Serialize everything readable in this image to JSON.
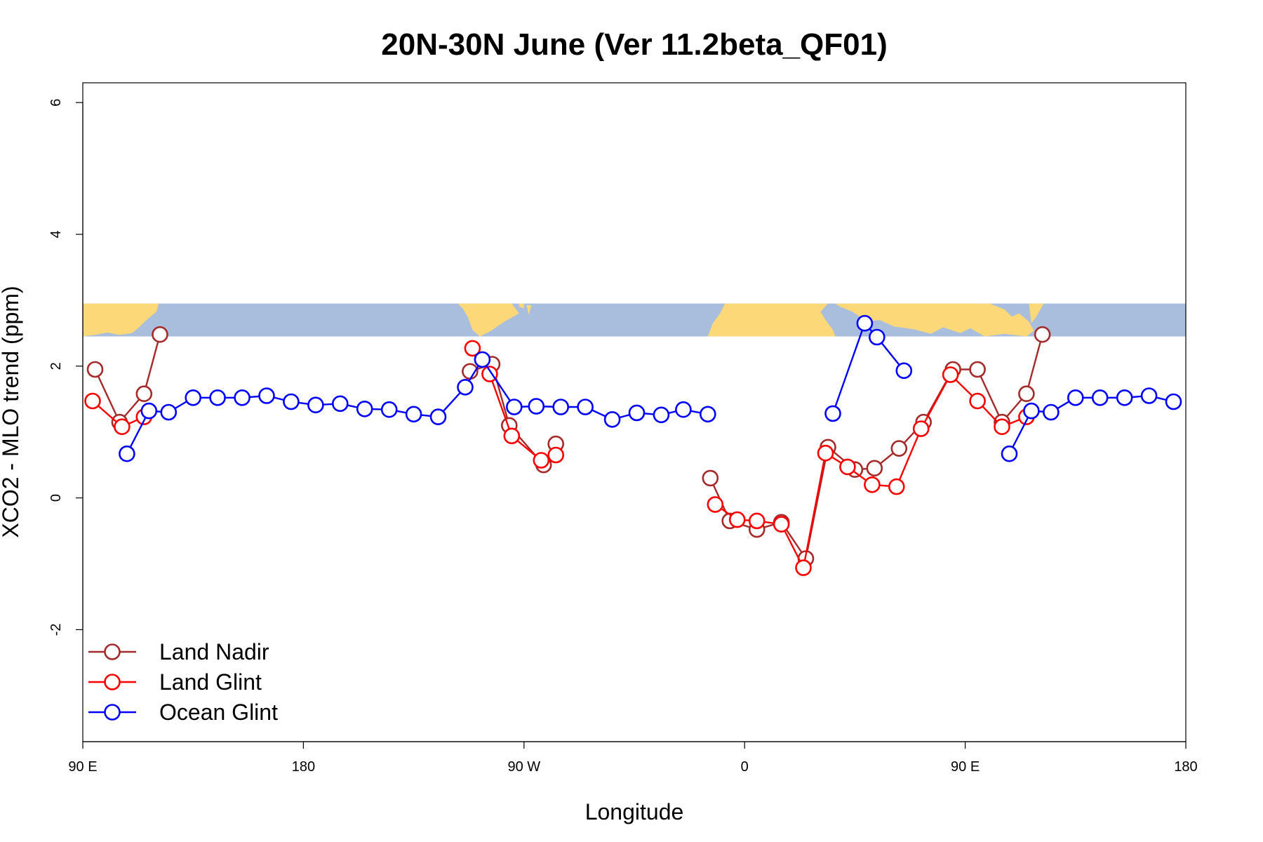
{
  "chart_data": {
    "type": "line",
    "title": "20N-30N June (Ver 11.2beta_QF01)",
    "xlabel": "Longitude",
    "ylabel": "XCO2 - MLO trend (ppm)",
    "xlim": [
      90,
      540
    ],
    "ylim": [
      -3.7,
      6.3
    ],
    "x_ticks": [
      {
        "value": 90,
        "label": "90 E"
      },
      {
        "value": 180,
        "label": "180"
      },
      {
        "value": 270,
        "label": "90 W"
      },
      {
        "value": 360,
        "label": "0"
      },
      {
        "value": 450,
        "label": "90 E"
      },
      {
        "value": 540,
        "label": "180"
      }
    ],
    "y_ticks": [
      {
        "value": -2,
        "label": "-2"
      },
      {
        "value": 0,
        "label": "0"
      },
      {
        "value": 2,
        "label": "2"
      },
      {
        "value": 4,
        "label": "4"
      },
      {
        "value": 6,
        "label": "6"
      }
    ],
    "map_band": {
      "ymin": 2.45,
      "ymax": 2.95,
      "ocean_color": "#a8bedc",
      "land_color": "#fdd878"
    },
    "legend_position": "bottom-left",
    "series": [
      {
        "name": "Land Nadir",
        "color": "#a52a2a",
        "segments": [
          [
            [
              95,
              1.95
            ],
            [
              105,
              1.15
            ],
            [
              115,
              1.58
            ],
            [
              121.5,
              2.48
            ]
          ],
          [
            [
              248,
              1.92
            ],
            [
              257,
              2.03
            ],
            [
              264,
              1.1
            ],
            [
              278,
              0.5
            ],
            [
              283,
              0.82
            ]
          ],
          [
            [
              346,
              0.3
            ],
            [
              354,
              -0.35
            ],
            [
              365,
              -0.48
            ],
            [
              375,
              -0.37
            ],
            [
              385,
              -0.92
            ],
            [
              394,
              0.77
            ],
            [
              405,
              0.43
            ],
            [
              413,
              0.45
            ],
            [
              423,
              0.75
            ],
            [
              433,
              1.15
            ],
            [
              445,
              1.95
            ],
            [
              455,
              1.95
            ],
            [
              465,
              1.15
            ],
            [
              475,
              1.58
            ],
            [
              481.5,
              2.48
            ]
          ]
        ]
      },
      {
        "name": "Land Glint",
        "color": "#ff0000",
        "segments": [
          [
            [
              94,
              1.47
            ],
            [
              106,
              1.08
            ],
            [
              115,
              1.23
            ]
          ],
          [
            [
              249,
              2.27
            ],
            [
              256,
              1.88
            ],
            [
              265,
              0.94
            ],
            [
              277,
              0.57
            ],
            [
              283,
              0.65
            ]
          ],
          [
            [
              348,
              -0.1
            ],
            [
              357,
              -0.33
            ],
            [
              365,
              -0.35
            ],
            [
              375,
              -0.4
            ],
            [
              384,
              -1.06
            ],
            [
              393,
              0.68
            ],
            [
              402,
              0.47
            ],
            [
              412,
              0.2
            ],
            [
              422,
              0.17
            ],
            [
              432,
              1.05
            ],
            [
              444,
              1.87
            ],
            [
              455,
              1.47
            ],
            [
              465,
              1.08
            ],
            [
              475,
              1.23
            ]
          ]
        ]
      },
      {
        "name": "Ocean Glint",
        "color": "#0000ff",
        "segments": [
          [
            [
              108,
              0.67
            ],
            [
              117,
              1.32
            ],
            [
              125,
              1.3
            ],
            [
              135,
              1.52
            ],
            [
              145,
              1.52
            ],
            [
              155,
              1.52
            ],
            [
              165,
              1.55
            ],
            [
              175,
              1.46
            ],
            [
              185,
              1.41
            ],
            [
              195,
              1.43
            ],
            [
              205,
              1.35
            ],
            [
              215,
              1.34
            ],
            [
              225,
              1.27
            ],
            [
              235,
              1.23
            ],
            [
              246,
              1.68
            ],
            [
              253,
              2.1
            ],
            [
              266,
              1.38
            ],
            [
              275,
              1.39
            ],
            [
              285,
              1.38
            ],
            [
              295,
              1.38
            ],
            [
              306,
              1.19
            ],
            [
              316,
              1.29
            ],
            [
              326,
              1.26
            ],
            [
              335,
              1.34
            ],
            [
              345,
              1.27
            ]
          ],
          [
            [
              396,
              1.28
            ],
            [
              409,
              2.65
            ],
            [
              414,
              2.44
            ],
            [
              425,
              1.93
            ]
          ],
          [
            [
              468,
              0.67
            ],
            [
              477,
              1.32
            ],
            [
              485,
              1.3
            ],
            [
              495,
              1.52
            ],
            [
              505,
              1.52
            ],
            [
              515,
              1.52
            ],
            [
              525,
              1.55
            ],
            [
              535,
              1.46
            ]
          ]
        ]
      }
    ]
  }
}
